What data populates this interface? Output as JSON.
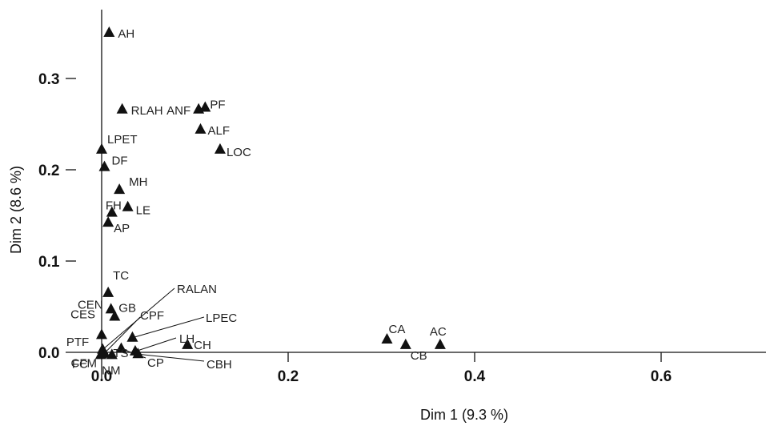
{
  "chart_data": {
    "type": "scatter",
    "title": "",
    "xlabel": "Dim 1 (9.3 %)",
    "ylabel": "Dim 2 (8.6 %)",
    "xlim": [
      -0.1,
      0.72
    ],
    "ylim": [
      -0.02,
      0.36
    ],
    "x_ticks": [
      {
        "value": 0.0,
        "label": "0.0"
      },
      {
        "value": 0.2,
        "label": "0.2"
      },
      {
        "value": 0.4,
        "label": "0.4"
      },
      {
        "value": 0.6,
        "label": "0.6"
      }
    ],
    "y_ticks": [
      {
        "value": 0.0,
        "label": "0.0"
      },
      {
        "value": 0.1,
        "label": "0.1"
      },
      {
        "value": 0.2,
        "label": "0.2"
      },
      {
        "value": 0.3,
        "label": "0.3"
      }
    ],
    "grid": false,
    "marker": "triangle",
    "points": [
      {
        "label": "AH",
        "x": 0.008,
        "y": 0.35
      },
      {
        "label": "RLAH",
        "x": 0.022,
        "y": 0.266
      },
      {
        "label": "ANF",
        "x": 0.104,
        "y": 0.266
      },
      {
        "label": "PF",
        "x": 0.111,
        "y": 0.268
      },
      {
        "label": "ALF",
        "x": 0.106,
        "y": 0.244
      },
      {
        "label": "LOC",
        "x": 0.127,
        "y": 0.222
      },
      {
        "label": "LPET",
        "x": 0.0,
        "y": 0.222
      },
      {
        "label": "DF",
        "x": 0.003,
        "y": 0.203
      },
      {
        "label": "MH",
        "x": 0.019,
        "y": 0.178
      },
      {
        "label": "FH",
        "x": 0.011,
        "y": 0.153
      },
      {
        "label": "LE",
        "x": 0.028,
        "y": 0.159
      },
      {
        "label": "AP",
        "x": 0.007,
        "y": 0.142
      },
      {
        "label": "TC",
        "x": 0.007,
        "y": 0.065
      },
      {
        "label": "CEN",
        "x": 0.01,
        "y": 0.047
      },
      {
        "label": "GB",
        "x": 0.014,
        "y": 0.039
      },
      {
        "label": "RALAN",
        "x": 0.001,
        "y": 0.003
      },
      {
        "label": "CES",
        "x": 0.0,
        "y": 0.019
      },
      {
        "label": "TS",
        "x": 0.002,
        "y": 0.0
      },
      {
        "label": "CPF",
        "x": 0.003,
        "y": -0.001
      },
      {
        "label": "LPEC",
        "x": 0.033,
        "y": 0.016
      },
      {
        "label": "CH",
        "x": 0.092,
        "y": 0.008
      },
      {
        "label": "PTF",
        "x": 0.001,
        "y": -0.001
      },
      {
        "label": "FC",
        "x": -0.001,
        "y": -0.003
      },
      {
        "label": "CFM",
        "x": 0.0,
        "y": -0.002
      },
      {
        "label": "NM",
        "x": 0.011,
        "y": -0.003
      },
      {
        "label": "CP",
        "x": 0.021,
        "y": 0.004
      },
      {
        "label": "LH",
        "x": 0.036,
        "y": 0.001
      },
      {
        "label": "CBH",
        "x": 0.039,
        "y": -0.002
      },
      {
        "label": "CA",
        "x": 0.306,
        "y": 0.014
      },
      {
        "label": "CB",
        "x": 0.326,
        "y": 0.008
      },
      {
        "label": "AC",
        "x": 0.363,
        "y": 0.008
      }
    ]
  }
}
